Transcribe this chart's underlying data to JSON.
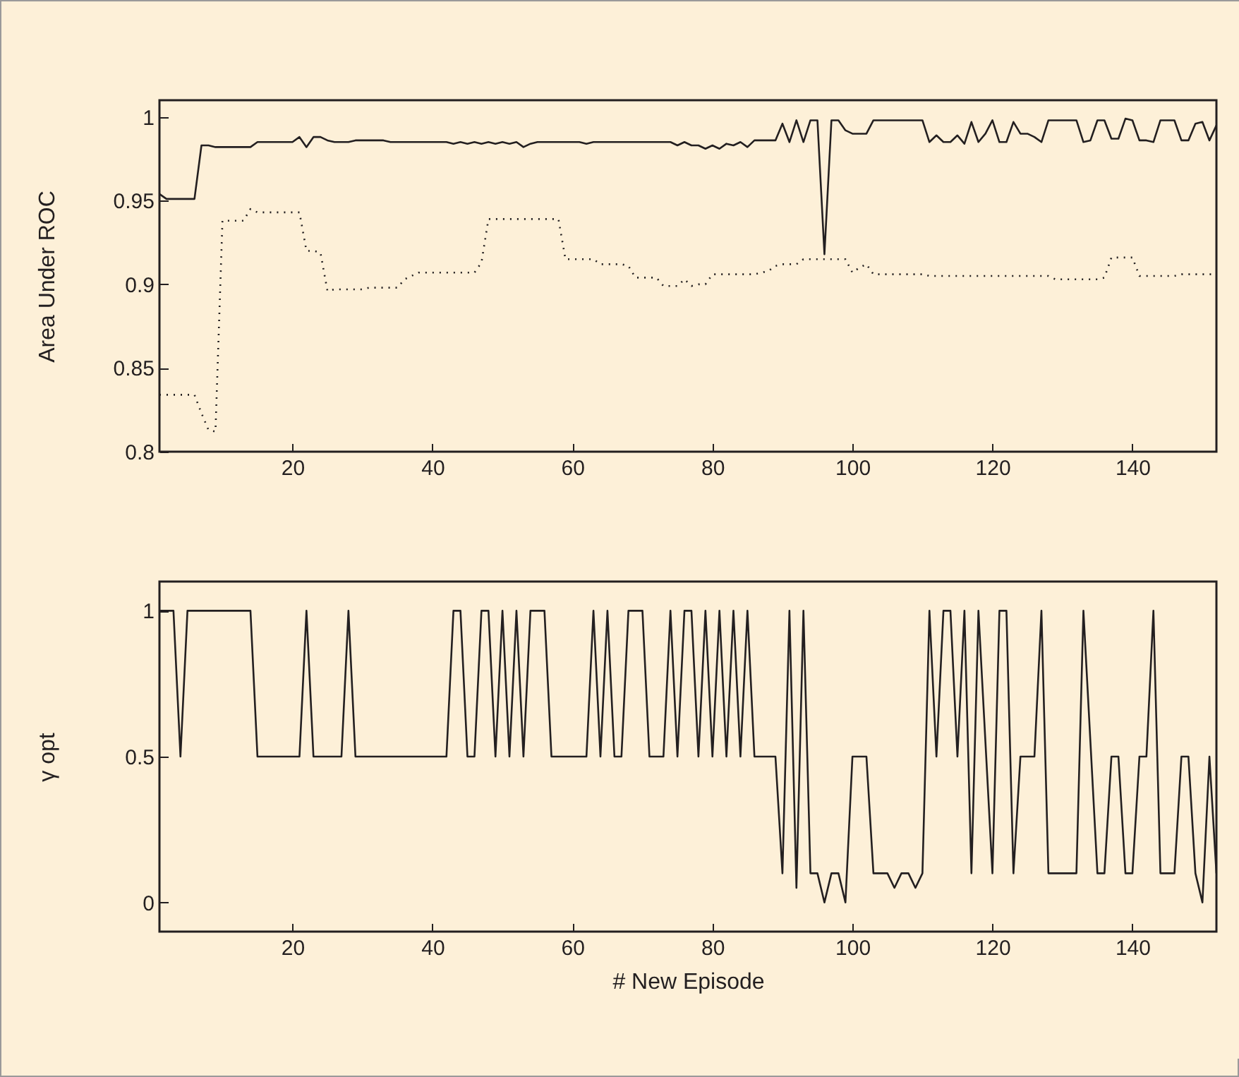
{
  "chart_data": [
    {
      "type": "line",
      "ylabel": "Area Under ROC",
      "xlim": [
        1,
        152
      ],
      "xticks": [
        20,
        40,
        60,
        80,
        100,
        120,
        140
      ],
      "ylim": [
        0.8,
        1.01
      ],
      "yticks": [
        0.8,
        0.85,
        0.9,
        0.95,
        1
      ],
      "x": [
        1,
        2,
        3,
        4,
        5,
        6,
        7,
        8,
        9,
        10,
        11,
        12,
        13,
        14,
        15,
        16,
        17,
        18,
        19,
        20,
        21,
        22,
        23,
        24,
        25,
        26,
        27,
        28,
        29,
        30,
        31,
        32,
        33,
        34,
        35,
        36,
        37,
        38,
        39,
        40,
        41,
        42,
        43,
        44,
        45,
        46,
        47,
        48,
        49,
        50,
        51,
        52,
        53,
        54,
        55,
        56,
        57,
        58,
        59,
        60,
        61,
        62,
        63,
        64,
        65,
        66,
        67,
        68,
        69,
        70,
        71,
        72,
        73,
        74,
        75,
        76,
        77,
        78,
        79,
        80,
        81,
        82,
        83,
        84,
        85,
        86,
        87,
        88,
        89,
        90,
        91,
        92,
        93,
        94,
        95,
        96,
        97,
        98,
        99,
        100,
        101,
        102,
        103,
        104,
        105,
        106,
        107,
        108,
        109,
        110,
        111,
        112,
        113,
        114,
        115,
        116,
        117,
        118,
        119,
        120,
        121,
        122,
        123,
        124,
        125,
        126,
        127,
        128,
        129,
        130,
        131,
        132,
        133,
        134,
        135,
        136,
        137,
        138,
        139,
        140,
        141,
        142,
        143,
        144,
        145,
        146,
        147,
        148,
        149,
        150,
        151,
        152
      ],
      "series": [
        {
          "color": "#231f20",
          "line_style": "solid",
          "values": [
            0.954,
            0.951,
            0.951,
            0.951,
            0.951,
            0.951,
            0.983,
            0.983,
            0.982,
            0.982,
            0.982,
            0.982,
            0.982,
            0.982,
            0.985,
            0.985,
            0.985,
            0.985,
            0.985,
            0.985,
            0.988,
            0.982,
            0.988,
            0.988,
            0.986,
            0.985,
            0.985,
            0.985,
            0.986,
            0.986,
            0.986,
            0.986,
            0.986,
            0.985,
            0.985,
            0.985,
            0.985,
            0.985,
            0.985,
            0.985,
            0.985,
            0.985,
            0.984,
            0.985,
            0.984,
            0.985,
            0.984,
            0.985,
            0.984,
            0.985,
            0.984,
            0.985,
            0.982,
            0.984,
            0.985,
            0.985,
            0.985,
            0.985,
            0.985,
            0.985,
            0.985,
            0.984,
            0.985,
            0.985,
            0.985,
            0.985,
            0.985,
            0.985,
            0.985,
            0.985,
            0.985,
            0.985,
            0.985,
            0.985,
            0.983,
            0.985,
            0.983,
            0.983,
            0.981,
            0.983,
            0.981,
            0.984,
            0.983,
            0.985,
            0.982,
            0.986,
            0.986,
            0.986,
            0.986,
            0.996,
            0.985,
            0.998,
            0.985,
            0.998,
            0.998,
            0.918,
            0.998,
            0.998,
            0.992,
            0.99,
            0.99,
            0.99,
            0.998,
            0.998,
            0.998,
            0.998,
            0.998,
            0.998,
            0.998,
            0.998,
            0.985,
            0.989,
            0.985,
            0.985,
            0.989,
            0.984,
            0.997,
            0.985,
            0.99,
            0.998,
            0.985,
            0.985,
            0.997,
            0.99,
            0.99,
            0.988,
            0.985,
            0.998,
            0.998,
            0.998,
            0.998,
            0.998,
            0.985,
            0.986,
            0.998,
            0.998,
            0.987,
            0.987,
            0.999,
            0.998,
            0.986,
            0.986,
            0.985,
            0.998,
            0.998,
            0.998,
            0.986,
            0.986,
            0.996,
            0.997,
            0.986,
            0.995
          ]
        },
        {
          "color": "#231f20",
          "line_style": "dotted",
          "values": [
            0.834,
            0.834,
            0.834,
            0.834,
            0.834,
            0.834,
            0.823,
            0.813,
            0.812,
            0.938,
            0.938,
            0.938,
            0.938,
            0.945,
            0.943,
            0.943,
            0.943,
            0.943,
            0.943,
            0.943,
            0.943,
            0.92,
            0.92,
            0.919,
            0.896,
            0.897,
            0.897,
            0.897,
            0.897,
            0.897,
            0.898,
            0.898,
            0.898,
            0.898,
            0.898,
            0.903,
            0.905,
            0.907,
            0.907,
            0.907,
            0.907,
            0.907,
            0.907,
            0.907,
            0.907,
            0.907,
            0.913,
            0.939,
            0.939,
            0.939,
            0.939,
            0.939,
            0.939,
            0.939,
            0.939,
            0.939,
            0.939,
            0.939,
            0.915,
            0.915,
            0.915,
            0.915,
            0.915,
            0.912,
            0.912,
            0.912,
            0.912,
            0.911,
            0.904,
            0.904,
            0.904,
            0.904,
            0.899,
            0.899,
            0.899,
            0.903,
            0.899,
            0.9,
            0.9,
            0.906,
            0.906,
            0.906,
            0.906,
            0.906,
            0.906,
            0.906,
            0.907,
            0.908,
            0.911,
            0.912,
            0.912,
            0.912,
            0.915,
            0.915,
            0.915,
            0.915,
            0.915,
            0.915,
            0.915,
            0.907,
            0.91,
            0.912,
            0.906,
            0.906,
            0.906,
            0.906,
            0.906,
            0.906,
            0.906,
            0.906,
            0.905,
            0.905,
            0.905,
            0.905,
            0.905,
            0.905,
            0.905,
            0.905,
            0.905,
            0.905,
            0.905,
            0.905,
            0.905,
            0.905,
            0.905,
            0.905,
            0.905,
            0.905,
            0.903,
            0.903,
            0.903,
            0.903,
            0.903,
            0.903,
            0.903,
            0.904,
            0.916,
            0.916,
            0.916,
            0.916,
            0.905,
            0.905,
            0.905,
            0.905,
            0.905,
            0.905,
            0.906,
            0.906,
            0.906,
            0.906,
            0.906,
            0.906
          ]
        }
      ]
    },
    {
      "type": "line",
      "xlabel": "# New Episode",
      "ylabel": "γ opt",
      "xlim": [
        1,
        152
      ],
      "xticks": [
        20,
        40,
        60,
        80,
        100,
        120,
        140
      ],
      "ylim": [
        -0.1,
        1.1
      ],
      "yticks": [
        0,
        0.5,
        1
      ],
      "x": [
        1,
        2,
        3,
        4,
        5,
        6,
        7,
        8,
        9,
        10,
        11,
        12,
        13,
        14,
        15,
        16,
        17,
        18,
        19,
        20,
        21,
        22,
        23,
        24,
        25,
        26,
        27,
        28,
        29,
        30,
        31,
        32,
        33,
        34,
        35,
        36,
        37,
        38,
        39,
        40,
        41,
        42,
        43,
        44,
        45,
        46,
        47,
        48,
        49,
        50,
        51,
        52,
        53,
        54,
        55,
        56,
        57,
        58,
        59,
        60,
        61,
        62,
        63,
        64,
        65,
        66,
        67,
        68,
        69,
        70,
        71,
        72,
        73,
        74,
        75,
        76,
        77,
        78,
        79,
        80,
        81,
        82,
        83,
        84,
        85,
        86,
        87,
        88,
        89,
        90,
        91,
        92,
        93,
        94,
        95,
        96,
        97,
        98,
        99,
        100,
        101,
        102,
        103,
        104,
        105,
        106,
        107,
        108,
        109,
        110,
        111,
        112,
        113,
        114,
        115,
        116,
        117,
        118,
        119,
        120,
        121,
        122,
        123,
        124,
        125,
        126,
        127,
        128,
        129,
        130,
        131,
        132,
        133,
        134,
        135,
        136,
        137,
        138,
        139,
        140,
        141,
        142,
        143,
        144,
        145,
        146,
        147,
        148,
        149,
        150,
        151,
        152
      ],
      "series": [
        {
          "color": "#231f20",
          "line_style": "solid",
          "values": [
            1,
            1,
            1,
            0.5,
            1,
            1,
            1,
            1,
            1,
            1,
            1,
            1,
            1,
            1,
            0.5,
            0.5,
            0.5,
            0.5,
            0.5,
            0.5,
            0.5,
            1,
            0.5,
            0.5,
            0.5,
            0.5,
            0.5,
            1,
            0.5,
            0.5,
            0.5,
            0.5,
            0.5,
            0.5,
            0.5,
            0.5,
            0.5,
            0.5,
            0.5,
            0.5,
            0.5,
            0.5,
            1,
            1,
            0.5,
            0.5,
            1,
            1,
            0.5,
            1,
            0.5,
            1,
            0.5,
            1,
            1,
            1,
            0.5,
            0.5,
            0.5,
            0.5,
            0.5,
            0.5,
            1,
            0.5,
            1,
            0.5,
            0.5,
            1,
            1,
            1,
            0.5,
            0.5,
            0.5,
            1,
            0.5,
            1,
            1,
            0.5,
            1,
            0.5,
            1,
            0.5,
            1,
            0.5,
            1,
            0.5,
            0.5,
            0.5,
            0.5,
            0.1,
            1,
            0.05,
            1,
            0.1,
            0.1,
            0,
            0.1,
            0.1,
            0,
            0.5,
            0.5,
            0.5,
            0.1,
            0.1,
            0.1,
            0.05,
            0.1,
            0.1,
            0.05,
            0.1,
            1,
            0.5,
            1,
            1,
            0.5,
            1,
            0.1,
            1,
            0.55,
            0.1,
            1,
            1,
            0.1,
            0.5,
            0.5,
            0.5,
            1,
            0.1,
            0.1,
            0.1,
            0.1,
            0.1,
            1,
            0.55,
            0.1,
            0.1,
            0.5,
            0.5,
            0.1,
            0.1,
            0.5,
            0.5,
            1,
            0.1,
            0.1,
            0.1,
            0.5,
            0.5,
            0.1,
            0,
            0.5,
            0.1
          ]
        }
      ]
    }
  ]
}
